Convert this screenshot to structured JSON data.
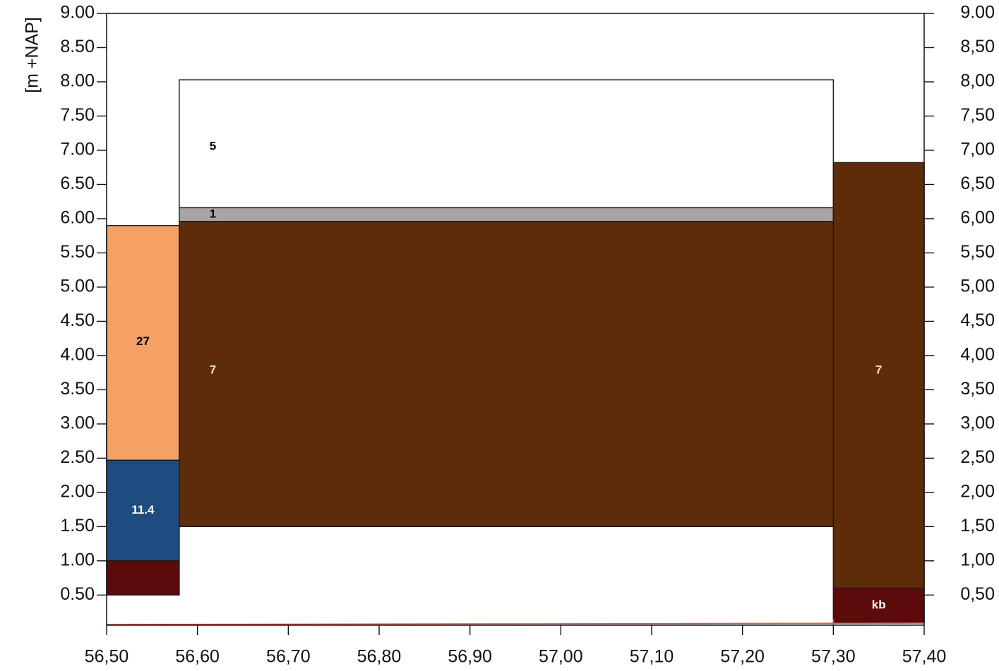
{
  "chart_data": {
    "type": "bar",
    "title": "",
    "xlabel": "",
    "ylabel": "[m +NAP]",
    "xlim": [
      56.5,
      57.4
    ],
    "ylim": [
      0.06,
      9.0
    ],
    "x_ticks": [
      {
        "value": 56.5,
        "label": "56,50"
      },
      {
        "value": 56.6,
        "label": "56,60"
      },
      {
        "value": 56.7,
        "label": "56,70"
      },
      {
        "value": 56.8,
        "label": "56,80"
      },
      {
        "value": 56.9,
        "label": "56,90"
      },
      {
        "value": 57.0,
        "label": "57,00"
      },
      {
        "value": 57.1,
        "label": "57,10"
      },
      {
        "value": 57.2,
        "label": "57,20"
      },
      {
        "value": 57.3,
        "label": "57,30"
      },
      {
        "value": 57.4,
        "label": "57,40"
      }
    ],
    "y_ticks_left": [
      {
        "value": 9.0,
        "label": "9.00"
      },
      {
        "value": 8.5,
        "label": "8.50"
      },
      {
        "value": 8.0,
        "label": "8.00"
      },
      {
        "value": 7.5,
        "label": "7.50"
      },
      {
        "value": 7.0,
        "label": "7.00"
      },
      {
        "value": 6.5,
        "label": "6.50"
      },
      {
        "value": 6.0,
        "label": "6.00"
      },
      {
        "value": 5.5,
        "label": "5.50"
      },
      {
        "value": 5.0,
        "label": "5.00"
      },
      {
        "value": 4.5,
        "label": "4.50"
      },
      {
        "value": 4.0,
        "label": "4.00"
      },
      {
        "value": 3.5,
        "label": "3.50"
      },
      {
        "value": 3.0,
        "label": "3.00"
      },
      {
        "value": 2.5,
        "label": "2.50"
      },
      {
        "value": 2.0,
        "label": "2.00"
      },
      {
        "value": 1.5,
        "label": "1.50"
      },
      {
        "value": 1.0,
        "label": "1.00"
      },
      {
        "value": 0.5,
        "label": "0.50"
      }
    ],
    "y_ticks_right": [
      {
        "value": 9.0,
        "label": "9.00"
      },
      {
        "value": 8.5,
        "label": "8,50"
      },
      {
        "value": 8.0,
        "label": "8,00"
      },
      {
        "value": 7.5,
        "label": "7,50"
      },
      {
        "value": 7.0,
        "label": "7,00"
      },
      {
        "value": 6.5,
        "label": "6,50"
      },
      {
        "value": 6.0,
        "label": "6,00"
      },
      {
        "value": 5.5,
        "label": "5,50"
      },
      {
        "value": 5.0,
        "label": "5,00"
      },
      {
        "value": 4.5,
        "label": "4,50"
      },
      {
        "value": 4.0,
        "label": "4,00"
      },
      {
        "value": 3.5,
        "label": "3,50"
      },
      {
        "value": 3.0,
        "label": "3,00"
      },
      {
        "value": 2.5,
        "label": "2,50"
      },
      {
        "value": 2.0,
        "label": "2,00"
      },
      {
        "value": 1.5,
        "label": "1,50"
      },
      {
        "value": 1.0,
        "label": "1,00"
      },
      {
        "value": 0.5,
        "label": "0,50"
      }
    ],
    "layers": [
      {
        "x0": 56.5,
        "x1": 56.58,
        "y0": 2.47,
        "y1": 5.9,
        "color": "#f5a165",
        "label": "27",
        "label_color": "#000000"
      },
      {
        "x0": 56.5,
        "x1": 56.58,
        "y0": 1.0,
        "y1": 2.47,
        "color": "#1f4c80",
        "label": "11.4",
        "label_color": "#ffffff"
      },
      {
        "x0": 56.5,
        "x1": 56.58,
        "y0": 0.5,
        "y1": 1.0,
        "color": "#5c0a0a",
        "label": "",
        "label_color": "#ffffff"
      },
      {
        "x0": 56.58,
        "x1": 57.3,
        "y0": 6.16,
        "y1": 8.03,
        "color": "#ffffff",
        "label": "5",
        "label_color": "#000000"
      },
      {
        "x0": 56.58,
        "x1": 57.3,
        "y0": 5.96,
        "y1": 6.16,
        "color": "#a8a4a4",
        "label": "1",
        "label_color": "#000000"
      },
      {
        "x0": 56.58,
        "x1": 57.3,
        "y0": 1.5,
        "y1": 5.96,
        "color": "#5e2c0a",
        "label": "7",
        "label_color": "#f2e6cc"
      },
      {
        "x0": 57.3,
        "x1": 57.4,
        "y0": 0.6,
        "y1": 6.82,
        "color": "#5e2c0a",
        "label": "7",
        "label_color": "#f2e6cc"
      },
      {
        "x0": 57.3,
        "x1": 57.4,
        "y0": 0.1,
        "y1": 0.6,
        "color": "#5c0a0a",
        "label": "kb",
        "label_color": "#ffffff"
      }
    ],
    "reference_line": {
      "from": [
        56.5,
        0.07
      ],
      "to": [
        57.4,
        0.09
      ],
      "color": "#e8483a"
    },
    "grid": false,
    "legend": "none"
  }
}
